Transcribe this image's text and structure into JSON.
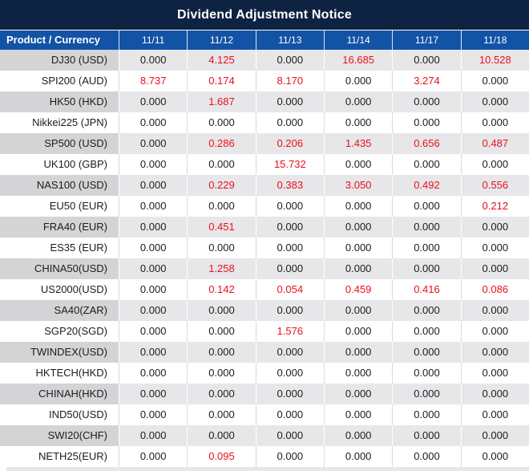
{
  "title": "Dividend Adjustment Notice",
  "colors": {
    "title_bar_bg": "#0e2242",
    "header_bg": "#1353a6",
    "stripe_product_bg": "#d4d3d6",
    "stripe_value_bg": "#e7e6e9",
    "value_red": "#e8111a",
    "text_black": "#1c1c1c"
  },
  "table": {
    "product_header": "Product / Currency",
    "columns": [
      "11/11",
      "11/12",
      "11/13",
      "11/14",
      "11/17",
      "11/18"
    ],
    "zero_value": "0.000",
    "rows": [
      {
        "product": "DJ30 (USD)",
        "values": [
          "0.000",
          "4.125",
          "0.000",
          "16.685",
          "0.000",
          "10.528"
        ]
      },
      {
        "product": "SPI200 (AUD)",
        "values": [
          "8.737",
          "0.174",
          "8.170",
          "0.000",
          "3.274",
          "0.000"
        ]
      },
      {
        "product": "HK50 (HKD)",
        "values": [
          "0.000",
          "1.687",
          "0.000",
          "0.000",
          "0.000",
          "0.000"
        ]
      },
      {
        "product": "Nikkei225 (JPN)",
        "values": [
          "0.000",
          "0.000",
          "0.000",
          "0.000",
          "0.000",
          "0.000"
        ]
      },
      {
        "product": "SP500 (USD)",
        "values": [
          "0.000",
          "0.286",
          "0.206",
          "1.435",
          "0.656",
          "0.487"
        ]
      },
      {
        "product": "UK100 (GBP)",
        "values": [
          "0.000",
          "0.000",
          "15.732",
          "0.000",
          "0.000",
          "0.000"
        ]
      },
      {
        "product": "NAS100 (USD)",
        "values": [
          "0.000",
          "0.229",
          "0.383",
          "3.050",
          "0.492",
          "0.556"
        ]
      },
      {
        "product": "EU50 (EUR)",
        "values": [
          "0.000",
          "0.000",
          "0.000",
          "0.000",
          "0.000",
          "0.212"
        ]
      },
      {
        "product": "FRA40 (EUR)",
        "values": [
          "0.000",
          "0.451",
          "0.000",
          "0.000",
          "0.000",
          "0.000"
        ]
      },
      {
        "product": "ES35 (EUR)",
        "values": [
          "0.000",
          "0.000",
          "0.000",
          "0.000",
          "0.000",
          "0.000"
        ]
      },
      {
        "product": "CHINA50(USD)",
        "values": [
          "0.000",
          "1.258",
          "0.000",
          "0.000",
          "0.000",
          "0.000"
        ]
      },
      {
        "product": "US2000(USD)",
        "values": [
          "0.000",
          "0.142",
          "0.054",
          "0.459",
          "0.416",
          "0.086"
        ]
      },
      {
        "product": "SA40(ZAR)",
        "values": [
          "0.000",
          "0.000",
          "0.000",
          "0.000",
          "0.000",
          "0.000"
        ]
      },
      {
        "product": "SGP20(SGD)",
        "values": [
          "0.000",
          "0.000",
          "1.576",
          "0.000",
          "0.000",
          "0.000"
        ]
      },
      {
        "product": "TWINDEX(USD)",
        "values": [
          "0.000",
          "0.000",
          "0.000",
          "0.000",
          "0.000",
          "0.000"
        ]
      },
      {
        "product": "HKTECH(HKD)",
        "values": [
          "0.000",
          "0.000",
          "0.000",
          "0.000",
          "0.000",
          "0.000"
        ]
      },
      {
        "product": "CHINAH(HKD)",
        "values": [
          "0.000",
          "0.000",
          "0.000",
          "0.000",
          "0.000",
          "0.000"
        ]
      },
      {
        "product": "IND50(USD)",
        "values": [
          "0.000",
          "0.000",
          "0.000",
          "0.000",
          "0.000",
          "0.000"
        ]
      },
      {
        "product": "SWI20(CHF)",
        "values": [
          "0.000",
          "0.000",
          "0.000",
          "0.000",
          "0.000",
          "0.000"
        ]
      },
      {
        "product": "NETH25(EUR)",
        "values": [
          "0.000",
          "0.095",
          "0.000",
          "0.000",
          "0.000",
          "0.000"
        ]
      }
    ]
  }
}
